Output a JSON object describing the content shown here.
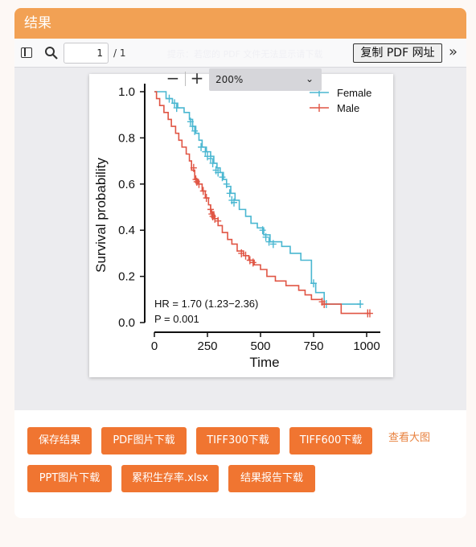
{
  "header": {
    "title": "结果"
  },
  "toolbar": {
    "page_value": "1",
    "page_total": "/ 1",
    "hint": "提示：若您的 PDF 文件无法显示请下载",
    "copy_label": "复制 PDF 网址",
    "zoom_out": "−",
    "zoom_in": "+",
    "zoom_value": "200%",
    "zoom_caret": "⌄",
    "more": "»"
  },
  "chart_data": {
    "type": "line",
    "subtype": "kaplan-meier",
    "xlabel": "Time",
    "ylabel": "Survival probability",
    "xlim": [
      0,
      1000
    ],
    "ylim": [
      0,
      1
    ],
    "xticks": [
      "0",
      "250",
      "500",
      "750",
      "1000"
    ],
    "yticks": [
      "0.0",
      "0.2",
      "0.4",
      "0.6",
      "0.8",
      "1.0"
    ],
    "legend_position": "top-right",
    "annotations": [
      "HR = 1.70 (1.23−2.36)",
      "P = 0.001"
    ],
    "series": [
      {
        "name": "Female",
        "color": "#4ab7d1",
        "steps": [
          [
            0,
            1.0
          ],
          [
            55,
            0.97
          ],
          [
            85,
            0.95
          ],
          [
            110,
            0.93
          ],
          [
            140,
            0.91
          ],
          [
            165,
            0.88
          ],
          [
            180,
            0.85
          ],
          [
            195,
            0.82
          ],
          [
            210,
            0.79
          ],
          [
            225,
            0.76
          ],
          [
            245,
            0.74
          ],
          [
            265,
            0.72
          ],
          [
            280,
            0.69
          ],
          [
            295,
            0.67
          ],
          [
            310,
            0.65
          ],
          [
            325,
            0.62
          ],
          [
            340,
            0.59
          ],
          [
            360,
            0.56
          ],
          [
            380,
            0.53
          ],
          [
            400,
            0.49
          ],
          [
            430,
            0.46
          ],
          [
            455,
            0.43
          ],
          [
            485,
            0.41
          ],
          [
            515,
            0.38
          ],
          [
            545,
            0.35
          ],
          [
            600,
            0.33
          ],
          [
            640,
            0.3
          ],
          [
            690,
            0.27
          ],
          [
            740,
            0.17
          ],
          [
            760,
            0.13
          ],
          [
            800,
            0.08
          ],
          [
            975,
            0.08
          ]
        ],
        "censored": [
          [
            70,
            0.97
          ],
          [
            95,
            0.95
          ],
          [
            105,
            0.93
          ],
          [
            170,
            0.87
          ],
          [
            180,
            0.85
          ],
          [
            190,
            0.83
          ],
          [
            220,
            0.76
          ],
          [
            240,
            0.74
          ],
          [
            250,
            0.72
          ],
          [
            265,
            0.71
          ],
          [
            275,
            0.69
          ],
          [
            290,
            0.66
          ],
          [
            300,
            0.65
          ],
          [
            320,
            0.63
          ],
          [
            340,
            0.6
          ],
          [
            355,
            0.56
          ],
          [
            365,
            0.53
          ],
          [
            375,
            0.52
          ],
          [
            510,
            0.4
          ],
          [
            525,
            0.37
          ],
          [
            540,
            0.35
          ],
          [
            560,
            0.34
          ],
          [
            750,
            0.17
          ],
          [
            810,
            0.08
          ],
          [
            970,
            0.08
          ]
        ]
      },
      {
        "name": "Male",
        "color": "#e05544",
        "steps": [
          [
            0,
            1.0
          ],
          [
            10,
            0.97
          ],
          [
            25,
            0.94
          ],
          [
            45,
            0.91
          ],
          [
            65,
            0.88
          ],
          [
            80,
            0.85
          ],
          [
            100,
            0.82
          ],
          [
            115,
            0.79
          ],
          [
            130,
            0.76
          ],
          [
            150,
            0.73
          ],
          [
            165,
            0.7
          ],
          [
            175,
            0.66
          ],
          [
            190,
            0.62
          ],
          [
            205,
            0.6
          ],
          [
            225,
            0.57
          ],
          [
            240,
            0.54
          ],
          [
            255,
            0.51
          ],
          [
            265,
            0.48
          ],
          [
            280,
            0.45
          ],
          [
            300,
            0.42
          ],
          [
            320,
            0.39
          ],
          [
            345,
            0.36
          ],
          [
            365,
            0.34
          ],
          [
            390,
            0.31
          ],
          [
            420,
            0.29
          ],
          [
            445,
            0.27
          ],
          [
            470,
            0.25
          ],
          [
            500,
            0.23
          ],
          [
            530,
            0.2
          ],
          [
            570,
            0.18
          ],
          [
            620,
            0.16
          ],
          [
            680,
            0.14
          ],
          [
            710,
            0.12
          ],
          [
            740,
            0.1
          ],
          [
            790,
            0.08
          ],
          [
            880,
            0.04
          ],
          [
            1010,
            0.04
          ]
        ],
        "censored": [
          [
            185,
            0.67
          ],
          [
            195,
            0.62
          ],
          [
            200,
            0.61
          ],
          [
            210,
            0.6
          ],
          [
            230,
            0.57
          ],
          [
            245,
            0.54
          ],
          [
            265,
            0.49
          ],
          [
            270,
            0.47
          ],
          [
            275,
            0.46
          ],
          [
            285,
            0.45
          ],
          [
            300,
            0.44
          ],
          [
            410,
            0.3
          ],
          [
            430,
            0.29
          ],
          [
            450,
            0.27
          ],
          [
            465,
            0.26
          ],
          [
            790,
            0.09
          ],
          [
            800,
            0.08
          ],
          [
            1005,
            0.04
          ],
          [
            1015,
            0.04
          ]
        ]
      }
    ]
  },
  "buttons": {
    "save": "保存结果",
    "pdf": "PDF图片下载",
    "tiff300": "TIFF300下载",
    "tiff600": "TIFF600下载",
    "view_large": "查看大图",
    "ppt": "PPT图片下载",
    "xlsx": "累积生存率.xlsx",
    "report": "结果报告下载"
  }
}
